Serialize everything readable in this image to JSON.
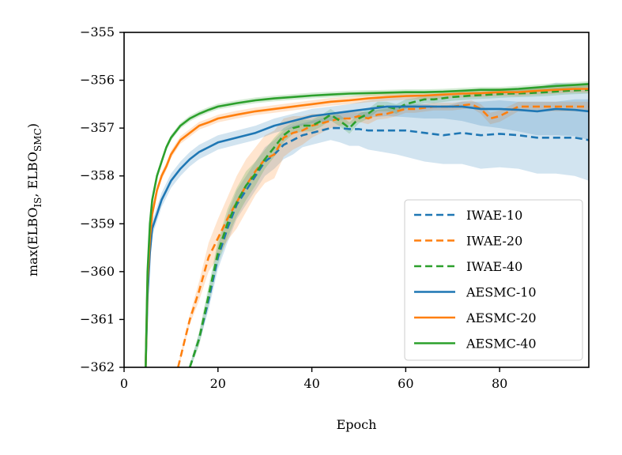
{
  "chart_data": {
    "type": "line",
    "title": "",
    "xlabel": "Epoch",
    "ylabel": {
      "prefix": "max(ELBO",
      "sub1": "IS",
      "middle": ", ELBO",
      "sub2": "SMC",
      "suffix": ")"
    },
    "xlim": [
      0,
      99
    ],
    "ylim": [
      -362,
      -355
    ],
    "xticks": [
      0,
      20,
      40,
      60,
      80
    ],
    "yticks": [
      -362,
      -361,
      -360,
      -359,
      -358,
      -357,
      -356,
      -355
    ],
    "xtick_labels": [
      "0",
      "20",
      "40",
      "60",
      "80"
    ],
    "ytick_labels": [
      "−362",
      "−361",
      "−360",
      "−359",
      "−358",
      "−357",
      "−356",
      "−355"
    ],
    "legend_position": "lower-right",
    "series": [
      {
        "name": "IWAE-10",
        "color": "#1f77b4",
        "style": "dashed",
        "x": [
          14,
          16,
          18,
          20,
          22,
          24,
          26,
          28,
          30,
          32,
          34,
          36,
          38,
          40,
          42,
          44,
          46,
          48,
          50,
          52,
          55,
          58,
          60,
          64,
          68,
          72,
          76,
          80,
          84,
          88,
          92,
          96,
          99
        ],
        "y": [
          -362,
          -361.4,
          -360.6,
          -359.7,
          -359.1,
          -358.6,
          -358.3,
          -358.0,
          -357.7,
          -357.55,
          -357.35,
          -357.25,
          -357.15,
          -357.1,
          -357.05,
          -357.0,
          -357.0,
          -357.02,
          -357.02,
          -357.05,
          -357.05,
          -357.05,
          -357.05,
          -357.1,
          -357.15,
          -357.1,
          -357.15,
          -357.12,
          -357.15,
          -357.2,
          -357.2,
          -357.2,
          -357.25
        ],
        "band_width": [
          0.05,
          0.1,
          0.2,
          0.25,
          0.3,
          0.3,
          0.3,
          0.3,
          0.3,
          0.3,
          0.3,
          0.3,
          0.25,
          0.25,
          0.25,
          0.25,
          0.3,
          0.35,
          0.35,
          0.4,
          0.45,
          0.5,
          0.55,
          0.6,
          0.6,
          0.65,
          0.7,
          0.7,
          0.7,
          0.75,
          0.75,
          0.8,
          0.85
        ]
      },
      {
        "name": "IWAE-20",
        "color": "#ff7f0e",
        "style": "dashed",
        "x": [
          11.5,
          14,
          16,
          18,
          20,
          22,
          24,
          26,
          28,
          30,
          32,
          34,
          36,
          38,
          40,
          42,
          44,
          46,
          48,
          50,
          52,
          54,
          56,
          58,
          60,
          62,
          66,
          70,
          74,
          76,
          78,
          80,
          84,
          88,
          92,
          96,
          99
        ],
        "y": [
          -362,
          -361.0,
          -360.4,
          -359.7,
          -359.3,
          -358.9,
          -358.55,
          -358.2,
          -357.9,
          -357.65,
          -357.55,
          -357.2,
          -357.1,
          -357.05,
          -356.95,
          -356.9,
          -356.85,
          -356.8,
          -356.8,
          -356.75,
          -356.8,
          -356.72,
          -356.7,
          -356.65,
          -356.6,
          -356.6,
          -356.55,
          -356.55,
          -356.5,
          -356.6,
          -356.8,
          -356.75,
          -356.55,
          -356.55,
          -356.55,
          -356.55,
          -356.55
        ],
        "band_width": [
          0.05,
          0.1,
          0.2,
          0.3,
          0.4,
          0.45,
          0.55,
          0.55,
          0.5,
          0.5,
          0.5,
          0.4,
          0.35,
          0.3,
          0.25,
          0.2,
          0.15,
          0.15,
          0.12,
          0.12,
          0.12,
          0.1,
          0.1,
          0.1,
          0.08,
          0.08,
          0.08,
          0.08,
          0.08,
          0.1,
          0.12,
          0.12,
          0.1,
          0.1,
          0.1,
          0.1,
          0.1
        ]
      },
      {
        "name": "IWAE-40",
        "color": "#2ca02c",
        "style": "dashed",
        "x": [
          14,
          16,
          18,
          20,
          22,
          24,
          26,
          28,
          30,
          32,
          34,
          36,
          38,
          40,
          42,
          44,
          46,
          48,
          50,
          52,
          54,
          56,
          58,
          60,
          62,
          64,
          66,
          70,
          74,
          78,
          82,
          86,
          90,
          94,
          99
        ],
        "y": [
          -362,
          -361.4,
          -360.5,
          -359.6,
          -359.0,
          -358.55,
          -358.2,
          -357.95,
          -357.65,
          -357.4,
          -357.15,
          -357.0,
          -356.95,
          -356.95,
          -356.85,
          -356.72,
          -356.85,
          -357.0,
          -356.8,
          -356.7,
          -356.55,
          -356.55,
          -356.6,
          -356.5,
          -356.45,
          -356.4,
          -356.4,
          -356.35,
          -356.32,
          -356.3,
          -356.28,
          -356.27,
          -356.25,
          -356.22,
          -356.2
        ],
        "band_width": [
          0.05,
          0.15,
          0.2,
          0.25,
          0.3,
          0.3,
          0.3,
          0.25,
          0.2,
          0.2,
          0.15,
          0.12,
          0.12,
          0.12,
          0.12,
          0.12,
          0.12,
          0.12,
          0.1,
          0.1,
          0.1,
          0.1,
          0.1,
          0.1,
          0.08,
          0.08,
          0.08,
          0.08,
          0.08,
          0.08,
          0.08,
          0.08,
          0.08,
          0.08,
          0.08
        ]
      },
      {
        "name": "AESMC-10",
        "color": "#1f77b4",
        "style": "solid",
        "x": [
          4.6,
          5,
          5.5,
          6,
          7,
          8,
          9,
          10,
          12,
          14,
          16,
          18,
          20,
          24,
          28,
          32,
          36,
          40,
          44,
          48,
          52,
          56,
          60,
          64,
          68,
          72,
          76,
          80,
          84,
          88,
          92,
          96,
          99
        ],
        "y": [
          -362,
          -360.5,
          -359.6,
          -359.1,
          -358.8,
          -358.5,
          -358.3,
          -358.1,
          -357.85,
          -357.65,
          -357.5,
          -357.4,
          -357.3,
          -357.2,
          -357.1,
          -356.95,
          -356.85,
          -356.75,
          -356.7,
          -356.65,
          -356.6,
          -356.55,
          -356.55,
          -356.55,
          -356.55,
          -356.55,
          -356.6,
          -356.6,
          -356.62,
          -356.65,
          -356.6,
          -356.62,
          -356.65
        ],
        "band_width": [
          0.05,
          0.12,
          0.15,
          0.15,
          0.15,
          0.15,
          0.15,
          0.15,
          0.15,
          0.15,
          0.15,
          0.15,
          0.15,
          0.15,
          0.15,
          0.15,
          0.15,
          0.15,
          0.15,
          0.15,
          0.18,
          0.2,
          0.22,
          0.25,
          0.25,
          0.3,
          0.35,
          0.4,
          0.45,
          0.5,
          0.55,
          0.55,
          0.6
        ]
      },
      {
        "name": "AESMC-20",
        "color": "#ff7f0e",
        "style": "solid",
        "x": [
          4.6,
          5,
          5.5,
          6,
          7,
          8,
          9,
          10,
          12,
          14,
          16,
          18,
          20,
          24,
          28,
          32,
          36,
          40,
          44,
          48,
          52,
          56,
          60,
          64,
          68,
          72,
          76,
          80,
          84,
          88,
          92,
          96,
          99
        ],
        "y": [
          -362,
          -360.2,
          -359.3,
          -358.8,
          -358.3,
          -358.0,
          -357.8,
          -357.55,
          -357.25,
          -357.1,
          -356.95,
          -356.88,
          -356.8,
          -356.72,
          -356.65,
          -356.6,
          -356.55,
          -356.5,
          -356.45,
          -356.42,
          -356.38,
          -356.35,
          -356.33,
          -356.32,
          -356.3,
          -356.28,
          -356.27,
          -356.25,
          -356.25,
          -356.22,
          -356.2,
          -356.18,
          -356.18
        ],
        "band_width": [
          0.05,
          0.08,
          0.08,
          0.08,
          0.08,
          0.08,
          0.08,
          0.08,
          0.08,
          0.08,
          0.08,
          0.08,
          0.08,
          0.08,
          0.08,
          0.08,
          0.08,
          0.08,
          0.08,
          0.08,
          0.08,
          0.08,
          0.08,
          0.08,
          0.08,
          0.08,
          0.08,
          0.08,
          0.08,
          0.08,
          0.08,
          0.08,
          0.08
        ]
      },
      {
        "name": "AESMC-40",
        "color": "#2ca02c",
        "style": "solid",
        "x": [
          4.6,
          5,
          5.5,
          6,
          7,
          8,
          9,
          10,
          12,
          14,
          16,
          18,
          20,
          24,
          28,
          32,
          36,
          40,
          44,
          48,
          52,
          56,
          60,
          64,
          68,
          72,
          76,
          80,
          84,
          88,
          92,
          96,
          99
        ],
        "y": [
          -362,
          -360.0,
          -359.0,
          -358.5,
          -358.0,
          -357.7,
          -357.4,
          -357.2,
          -356.95,
          -356.8,
          -356.7,
          -356.62,
          -356.55,
          -356.48,
          -356.42,
          -356.38,
          -356.35,
          -356.32,
          -356.3,
          -356.28,
          -356.27,
          -356.26,
          -356.25,
          -356.25,
          -356.24,
          -356.22,
          -356.2,
          -356.2,
          -356.18,
          -356.15,
          -356.12,
          -356.1,
          -356.08
        ],
        "band_width": [
          0.05,
          0.06,
          0.06,
          0.06,
          0.06,
          0.06,
          0.06,
          0.06,
          0.06,
          0.06,
          0.06,
          0.06,
          0.06,
          0.06,
          0.06,
          0.06,
          0.06,
          0.06,
          0.06,
          0.06,
          0.06,
          0.06,
          0.06,
          0.06,
          0.06,
          0.06,
          0.06,
          0.06,
          0.06,
          0.06,
          0.06,
          0.06,
          0.06
        ]
      }
    ]
  }
}
